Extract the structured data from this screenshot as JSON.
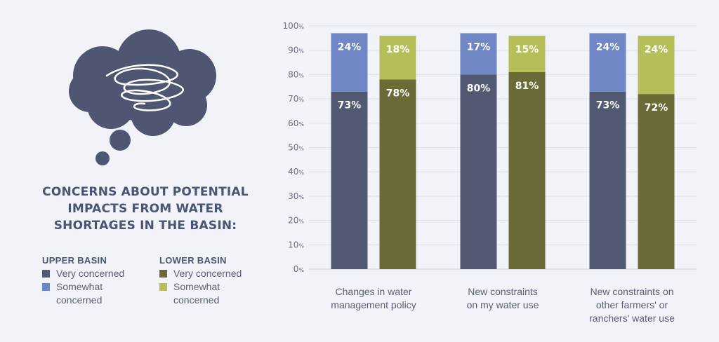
{
  "title_lines": [
    "CONCERNS ABOUT POTENTIAL",
    "IMPACTS FROM WATER",
    "SHORTAGES IN THE BASIN:"
  ],
  "legend": {
    "upper": {
      "heading": "UPPER BASIN",
      "items": [
        {
          "label_lines": [
            "Very concerned"
          ],
          "color": "#525a73"
        },
        {
          "label_lines": [
            "Somewhat",
            "concerned"
          ],
          "color": "#6f87c4"
        }
      ]
    },
    "lower": {
      "heading": "LOWER BASIN",
      "items": [
        {
          "label_lines": [
            "Very concerned"
          ],
          "color": "#6b6b37"
        },
        {
          "label_lines": [
            "Somewhat",
            "concerned"
          ],
          "color": "#b5be57"
        }
      ]
    }
  },
  "icons": {
    "cloud": "thought-cloud-icon",
    "scribble": "scribble-icon"
  },
  "chart_data": {
    "type": "bar",
    "stacked": true,
    "categories": [
      [
        "Changes in water",
        "management policy"
      ],
      [
        "New constraints",
        "on my water use"
      ],
      [
        "New constraints on",
        "other farmers' or",
        "ranchers' water use"
      ]
    ],
    "groups": [
      {
        "name": "UPPER BASIN",
        "segments": [
          {
            "name": "Very concerned",
            "color": "#525a73",
            "values": [
              73,
              80,
              73
            ]
          },
          {
            "name": "Somewhat concerned",
            "color": "#6f87c4",
            "values": [
              24,
              17,
              24
            ]
          }
        ]
      },
      {
        "name": "LOWER BASIN",
        "segments": [
          {
            "name": "Very concerned",
            "color": "#6b6b37",
            "values": [
              78,
              81,
              72
            ]
          },
          {
            "name": "Somewhat concerned",
            "color": "#b5be57",
            "values": [
              18,
              15,
              24
            ]
          }
        ]
      }
    ],
    "value_labels": true,
    "ylim": [
      0,
      100
    ],
    "yticks": [
      0,
      10,
      20,
      30,
      40,
      50,
      60,
      70,
      80,
      90,
      100
    ],
    "tick_suffix": "%",
    "grid": true
  }
}
